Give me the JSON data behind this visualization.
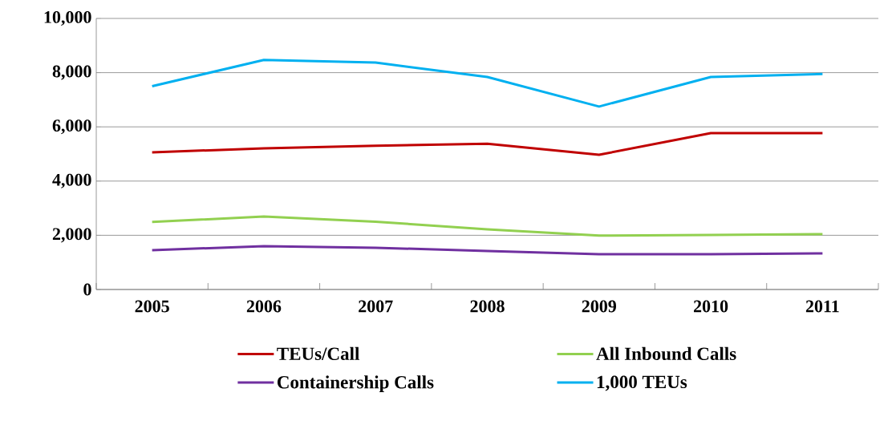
{
  "chart_data": {
    "type": "line",
    "categories": [
      "2005",
      "2006",
      "2007",
      "2008",
      "2009",
      "2010",
      "2011"
    ],
    "series": [
      {
        "name": "TEUs/Call",
        "color": "#c00000",
        "values": [
          5060,
          5210,
          5300,
          5380,
          4970,
          5770,
          5770
        ]
      },
      {
        "name": "All Inbound Calls",
        "color": "#92d050",
        "values": [
          2490,
          2690,
          2500,
          2220,
          1990,
          2010,
          2040
        ]
      },
      {
        "name": "Containership Calls",
        "color": "#7030a0",
        "values": [
          1450,
          1600,
          1540,
          1420,
          1300,
          1300,
          1330
        ]
      },
      {
        "name": "1,000 TEUs",
        "color": "#00b0f0",
        "values": [
          7500,
          8470,
          8370,
          7840,
          6750,
          7840,
          7950
        ]
      }
    ],
    "ylim": [
      0,
      10000
    ],
    "yticks": [
      0,
      {
        "value": 2000,
        "label": "2,000"
      },
      {
        "value": 4000,
        "label": "4,000"
      },
      {
        "value": 6000,
        "label": "6,000"
      },
      {
        "value": 8000,
        "label": "8,000"
      },
      {
        "value": 10000,
        "label": "10,000"
      }
    ],
    "grid": "y",
    "legend": "bottom"
  }
}
